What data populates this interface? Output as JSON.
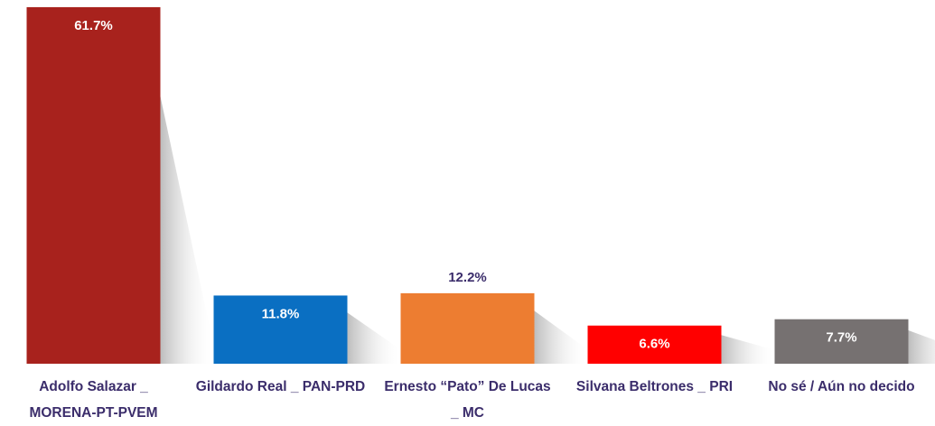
{
  "chart_data": {
    "type": "bar",
    "categories": [
      "Adolfo Salazar _ MORENA-PT-PVEM",
      "Gildardo Real _ PAN-PRD",
      "Ernesto “Pato” De Lucas _ MC",
      "Silvana Beltrones _ PRI",
      "No sé / Aún no decido"
    ],
    "values": [
      61.7,
      11.8,
      12.2,
      6.6,
      7.7
    ],
    "value_labels": [
      "61.7%",
      "11.8%",
      "12.2%",
      "6.6%",
      "7.7%"
    ],
    "colors": [
      "#a8221d",
      "#0a6fc2",
      "#ed7d31",
      "#ff0000",
      "#767171"
    ],
    "value_label_colors": [
      "#ffffff",
      "#ffffff",
      "#3b2d6b",
      "#ffffff",
      "#ffffff"
    ],
    "ylim": [
      0,
      62
    ]
  }
}
